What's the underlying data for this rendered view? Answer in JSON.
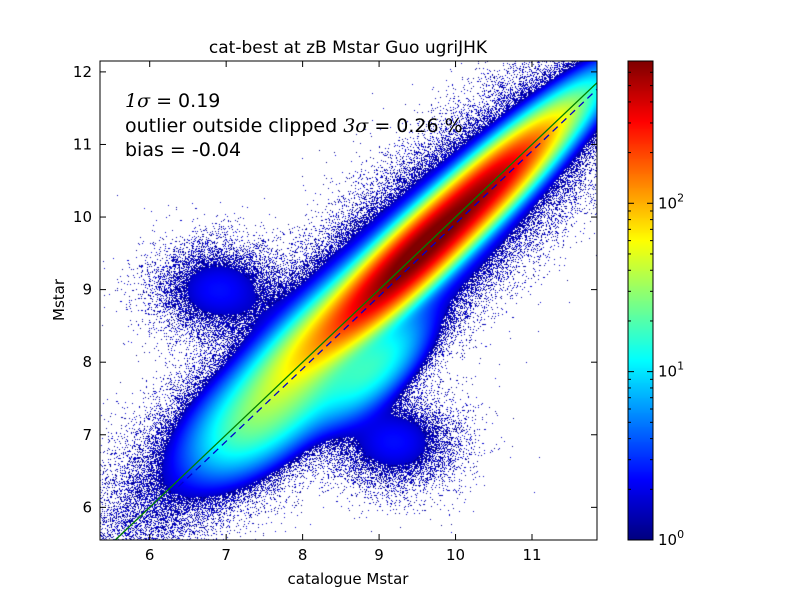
{
  "chart_data": {
    "type": "heatmap",
    "title": "cat-best at zB Mstar Guo ugriJHK",
    "xlabel": "catalogue Mstar",
    "ylabel": "Mstar",
    "xlim": [
      5.35,
      11.85
    ],
    "ylim": [
      5.55,
      12.15
    ],
    "xticks": [
      "6",
      "7",
      "8",
      "9",
      "10",
      "11"
    ],
    "yticks": [
      "6",
      "7",
      "8",
      "9",
      "10",
      "11",
      "12"
    ],
    "annotations": {
      "sigma_symbol": "1σ",
      "sigma_value": " = 0.19",
      "outlier_text": "outlier outside clipped ",
      "outlier_symbol": "3σ",
      "outlier_value": " = 0.26 %",
      "bias": "bias = -0.04"
    },
    "lines": [
      {
        "style": "solid",
        "color": "#008000",
        "from": [
          5.35,
          5.35
        ],
        "to": [
          11.85,
          11.85
        ]
      },
      {
        "style": "dashed",
        "color": "#0000cc",
        "from": [
          5.35,
          5.26
        ],
        "to": [
          11.85,
          11.76
        ]
      }
    ],
    "density_components": [
      {
        "x": 9.9,
        "y": 9.9,
        "sx": 0.16,
        "sy": 0.95,
        "angle": 45,
        "amp": 650
      },
      {
        "x": 9.3,
        "y": 9.3,
        "sx": 0.17,
        "sy": 0.65,
        "angle": 46,
        "amp": 330
      },
      {
        "x": 8.4,
        "y": 8.5,
        "sx": 0.2,
        "sy": 0.7,
        "angle": 44,
        "amp": 70
      },
      {
        "x": 7.8,
        "y": 7.6,
        "sx": 0.28,
        "sy": 0.6,
        "angle": 42,
        "amp": 22
      },
      {
        "x": 7.3,
        "y": 7.1,
        "sx": 0.3,
        "sy": 0.5,
        "angle": 38,
        "amp": 10
      },
      {
        "x": 8.9,
        "y": 7.9,
        "sx": 0.22,
        "sy": 0.5,
        "angle": 45,
        "amp": 14
      },
      {
        "x": 10.5,
        "y": 10.5,
        "sx": 0.15,
        "sy": 0.4,
        "angle": 45,
        "amp": 60
      },
      {
        "x": 9.0,
        "y": 9.0,
        "sx": 0.45,
        "sy": 2.2,
        "angle": 45,
        "amp": 6
      },
      {
        "x": 6.9,
        "y": 9.0,
        "sx": 0.35,
        "sy": 0.45,
        "angle": 0,
        "amp": 2.4
      },
      {
        "x": 9.2,
        "y": 6.9,
        "sx": 0.35,
        "sy": 0.45,
        "angle": 0,
        "amp": 2.4
      }
    ],
    "colorbar": {
      "scale": "log",
      "range": [
        1,
        700
      ],
      "ticks": [
        {
          "value": 1,
          "base": "10",
          "exp": "0"
        },
        {
          "value": 10,
          "base": "10",
          "exp": "1"
        },
        {
          "value": 100,
          "base": "10",
          "exp": "2"
        }
      ],
      "colormap": "jet"
    },
    "grid": false
  }
}
